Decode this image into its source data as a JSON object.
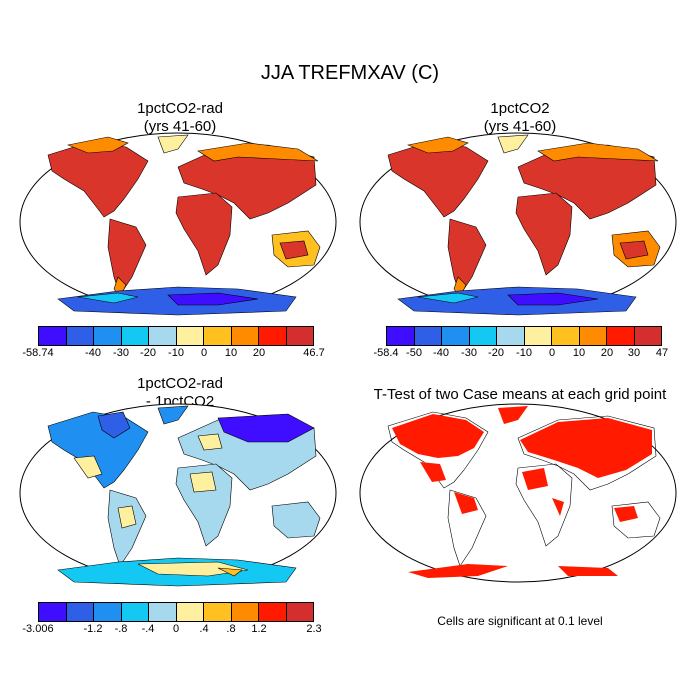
{
  "title": "JJA TREFMXAV (C)",
  "panels": [
    {
      "title_line1": "1pctCO2-rad",
      "title_line2": "(yrs 41-60)",
      "colorbar": {
        "colors": [
          "#3f0dff",
          "#2f5fe6",
          "#1f90f2",
          "#14c8f4",
          "#a6d8ee",
          "#fff0a0",
          "#ffc020",
          "#ff8c00",
          "#ff1a00",
          "#d42e2e"
        ],
        "labels": [
          "-58.74",
          "-40",
          "-30",
          "-20",
          "-10",
          "0",
          "10",
          "20",
          "46.7"
        ]
      }
    },
    {
      "title_line1": "1pctCO2",
      "title_line2": "(yrs 41-60)",
      "colorbar": {
        "colors": [
          "#3f0dff",
          "#2f5fe6",
          "#1f90f2",
          "#14c8f4",
          "#a6d8ee",
          "#fff0a0",
          "#ffc020",
          "#ff8c00",
          "#ff1a00",
          "#d42e2e"
        ],
        "labels": [
          "-58.4",
          "-50",
          "-40",
          "-30",
          "-20",
          "-10",
          "0",
          "10",
          "20",
          "30",
          "47"
        ]
      }
    },
    {
      "title_line1": "1pctCO2-rad",
      "title_line2": "- 1pctCO2",
      "colorbar": {
        "colors": [
          "#3f0dff",
          "#2f5fe6",
          "#1f90f2",
          "#14c8f4",
          "#a6d8ee",
          "#fff0a0",
          "#ffc020",
          "#ff8c00",
          "#ff1a00",
          "#d42e2e"
        ],
        "labels": [
          "-3.006",
          "-1.2",
          "-.8",
          "-.4",
          "0",
          ".4",
          ".8",
          "1.2",
          "2.3"
        ]
      }
    },
    {
      "title_line1": "T-Test of two Case means at each grid point",
      "note": "Cells are significant at 0.1 level"
    }
  ]
}
